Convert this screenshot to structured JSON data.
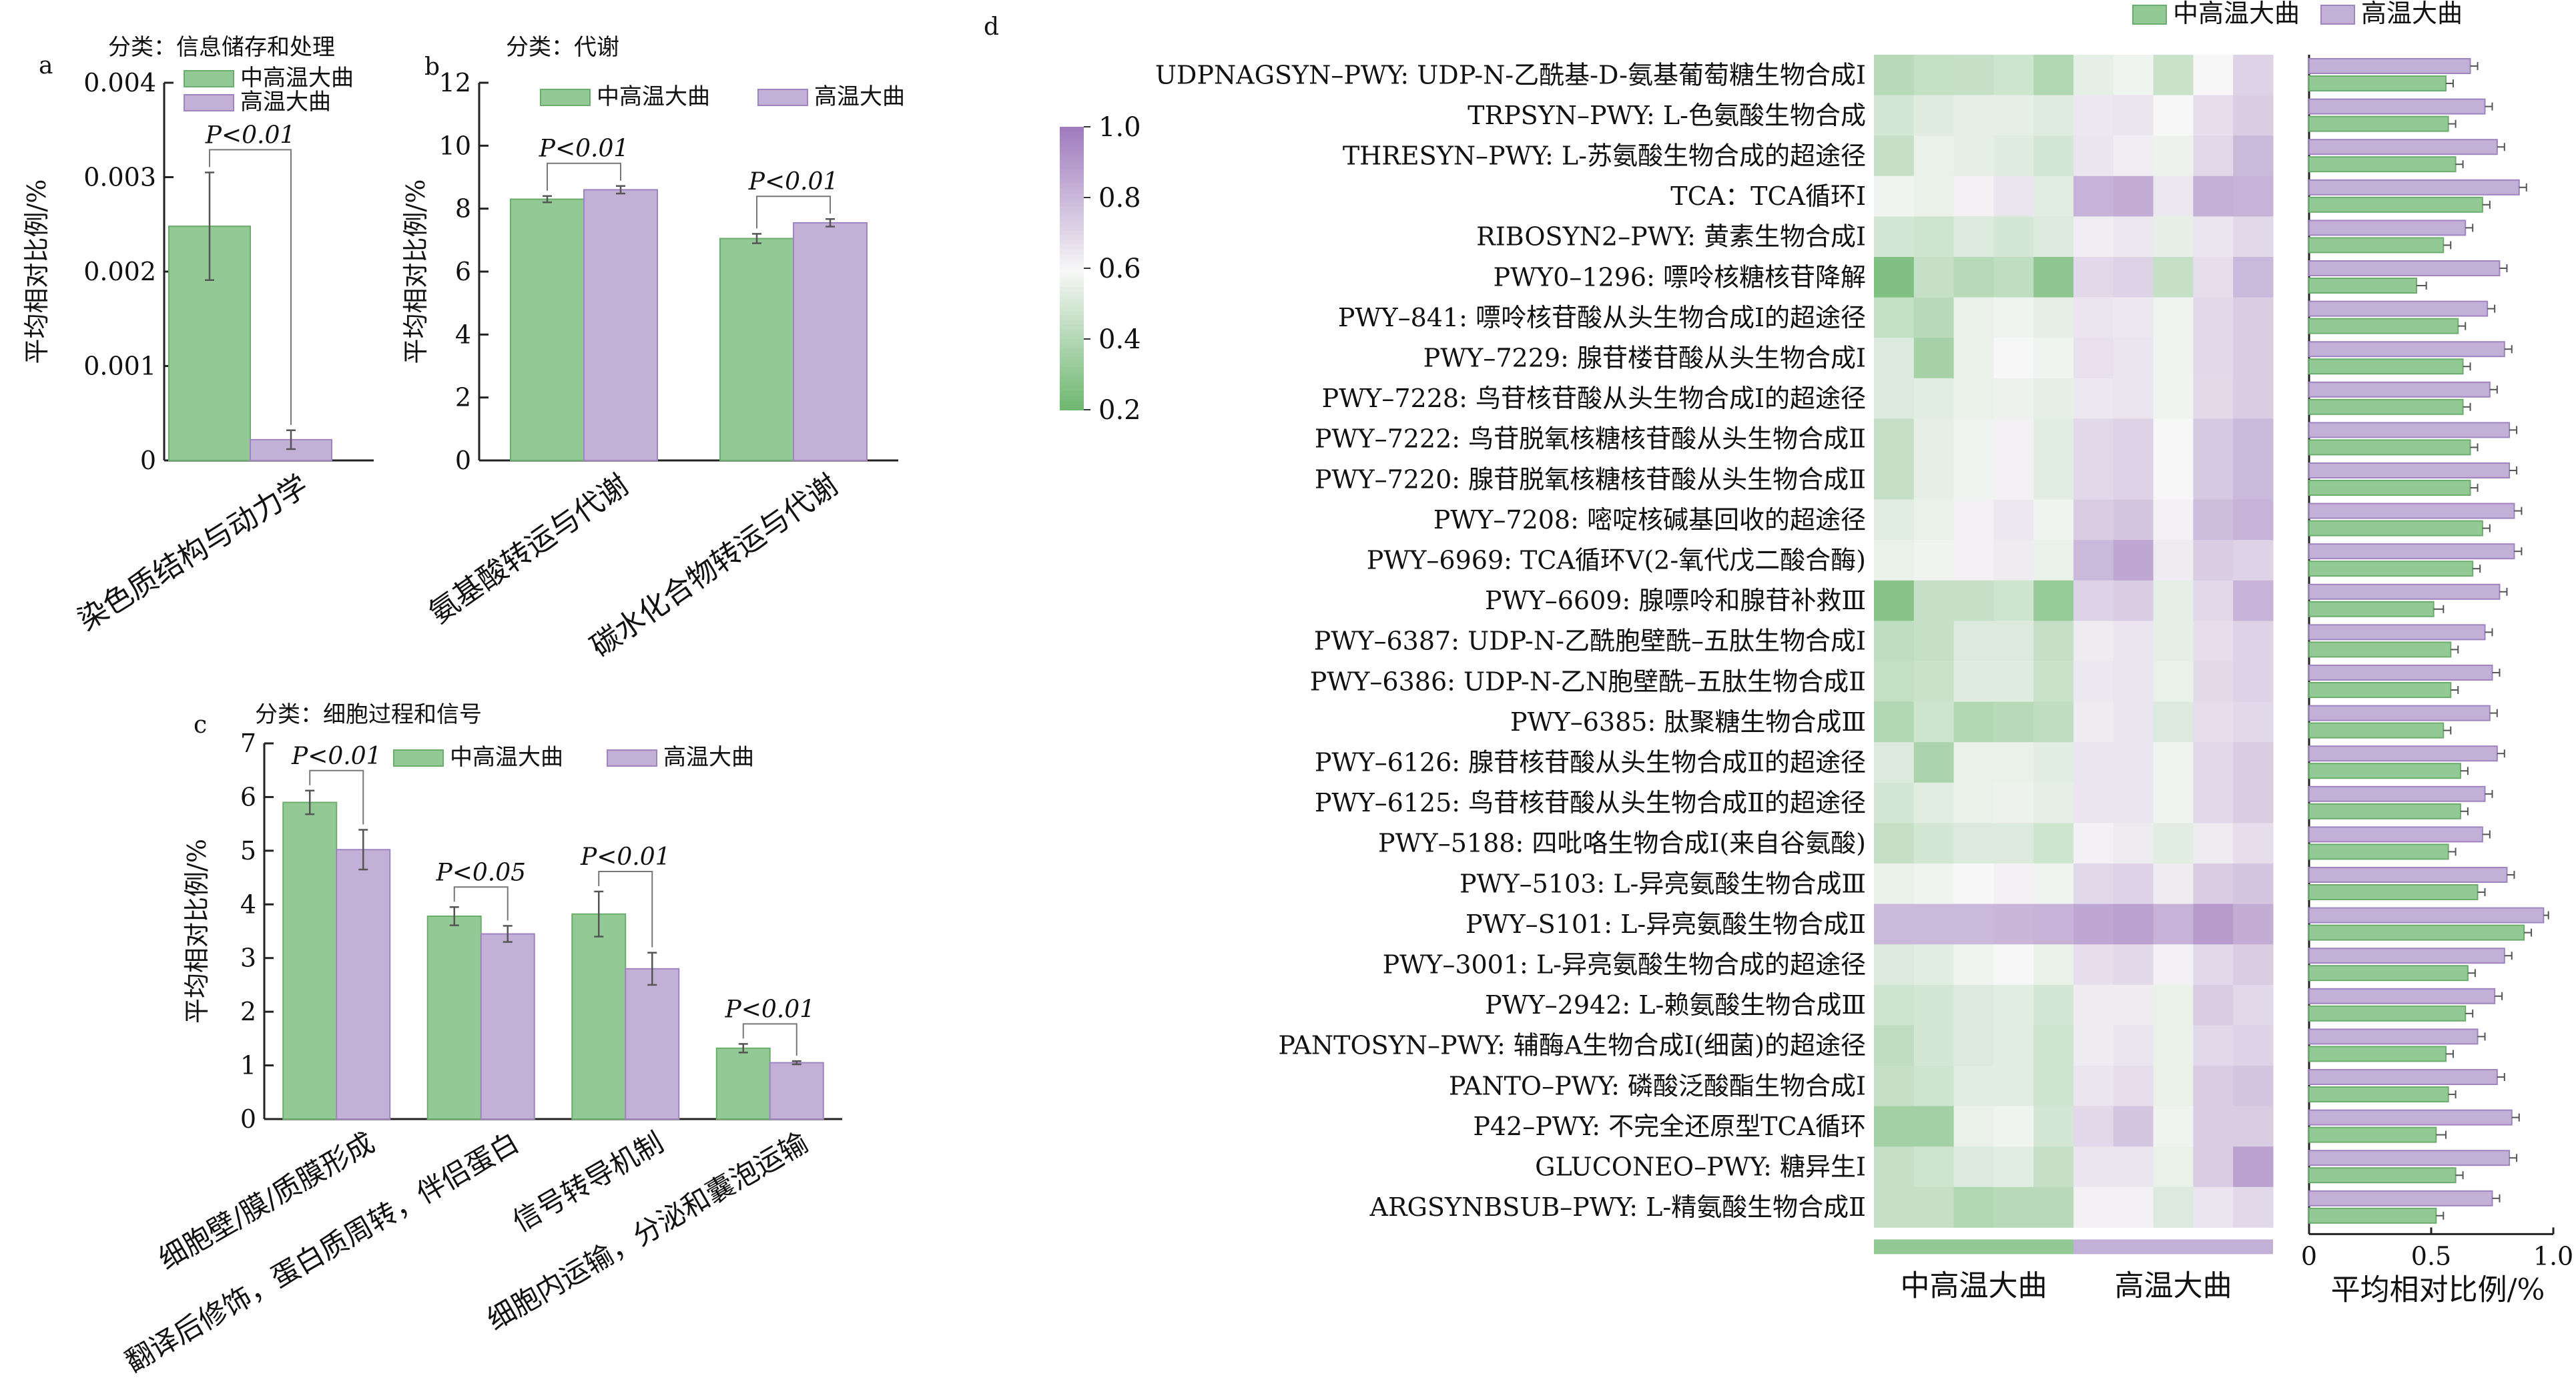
{
  "colors": {
    "green": "#93c994",
    "green_dark": "#6aad6c",
    "purple": "#c3b0d6",
    "purple_dark": "#9f84c0",
    "axis": "#222222"
  },
  "groups": [
    "中高温大曲",
    "高温大曲"
  ],
  "chart_data": [
    {
      "panel": "a",
      "type": "bar",
      "title": "分类：信息储存和处理",
      "ylabel": "平均相对比例/%",
      "ylim": [
        0,
        0.004
      ],
      "yticks": [
        {
          "v": 0,
          "label": "0"
        },
        {
          "v": 0.001,
          "label": "0.001"
        },
        {
          "v": 0.002,
          "label": "0.002"
        },
        {
          "v": 0.003,
          "label": "0.003"
        },
        {
          "v": 0.004,
          "label": "0.004"
        }
      ],
      "categories": [
        "染色质结构与动力学"
      ],
      "series": [
        {
          "name": "中高温大曲",
          "values": [
            0.00248
          ],
          "errors": [
            0.00057
          ]
        },
        {
          "name": "高温大曲",
          "values": [
            0.00022
          ],
          "errors": [
            0.0001
          ]
        }
      ],
      "annotations": [
        {
          "category": 0,
          "text": "P<0.01"
        }
      ],
      "legend": "top-right"
    },
    {
      "panel": "b",
      "type": "bar",
      "title": "分类：代谢",
      "ylabel": "平均相对比例/%",
      "ylim": [
        0,
        12
      ],
      "yticks": [
        {
          "v": 0,
          "label": "0"
        },
        {
          "v": 2,
          "label": "2"
        },
        {
          "v": 4,
          "label": "4"
        },
        {
          "v": 6,
          "label": "6"
        },
        {
          "v": 8,
          "label": "8"
        },
        {
          "v": 10,
          "label": "10"
        },
        {
          "v": 12,
          "label": "12"
        }
      ],
      "categories": [
        "氨基酸转运与代谢",
        "碳水化合物转运与代谢"
      ],
      "series": [
        {
          "name": "中高温大曲",
          "values": [
            8.3,
            7.05
          ],
          "errors": [
            0.1,
            0.15
          ]
        },
        {
          "name": "高温大曲",
          "values": [
            8.6,
            7.55
          ],
          "errors": [
            0.12,
            0.12
          ]
        }
      ],
      "annotations": [
        {
          "category": 0,
          "text": "P<0.01"
        },
        {
          "category": 1,
          "text": "P<0.01"
        }
      ],
      "legend": "top"
    },
    {
      "panel": "c",
      "type": "bar",
      "title": "分类：细胞过程和信号",
      "ylabel": "平均相对比例/%",
      "ylim": [
        0,
        7
      ],
      "yticks": [
        {
          "v": 0,
          "label": "0"
        },
        {
          "v": 1,
          "label": "1"
        },
        {
          "v": 2,
          "label": "2"
        },
        {
          "v": 3,
          "label": "3"
        },
        {
          "v": 4,
          "label": "4"
        },
        {
          "v": 5,
          "label": "5"
        },
        {
          "v": 6,
          "label": "6"
        },
        {
          "v": 7,
          "label": "7"
        }
      ],
      "categories": [
        "细胞壁/膜/质膜形成",
        "翻译后修饰，蛋白质周转，伴侣蛋白",
        "信号转导机制",
        "细胞内运输，分泌和囊泡运输"
      ],
      "series": [
        {
          "name": "中高温大曲",
          "values": [
            5.9,
            3.78,
            3.82,
            1.32
          ],
          "errors": [
            0.22,
            0.17,
            0.42,
            0.08
          ]
        },
        {
          "name": "高温大曲",
          "values": [
            5.02,
            3.45,
            2.8,
            1.05
          ],
          "errors": [
            0.37,
            0.15,
            0.3,
            0.03
          ]
        }
      ],
      "annotations": [
        {
          "category": 0,
          "text": "P<0.01"
        },
        {
          "category": 1,
          "text": "P<0.05"
        },
        {
          "category": 2,
          "text": "P<0.01"
        },
        {
          "category": 3,
          "text": "P<0.01"
        }
      ],
      "legend": "top"
    },
    {
      "panel": "d",
      "type": "heatmap",
      "colorbar": {
        "min": 0.2,
        "max": 1.0,
        "ticks": [
          "1.0",
          "0.8",
          "0.6",
          "0.4",
          "0.2"
        ]
      },
      "column_groups": [
        "中高温大曲",
        "高温大曲"
      ],
      "rows": [
        {
          "label": "UDPNAGSYN–PWY: UDP-N-乙酰基-D-氨基葡萄糖生物合成Ⅰ",
          "cells": [
            0.42,
            0.45,
            0.46,
            0.48,
            0.4,
            0.55,
            0.58,
            0.47,
            0.6,
            0.72
          ]
        },
        {
          "label": "TRPSYN–PWY: L-色氨酸生物合成",
          "cells": [
            0.5,
            0.53,
            0.55,
            0.55,
            0.53,
            0.65,
            0.66,
            0.6,
            0.68,
            0.74
          ]
        },
        {
          "label": "THRESYN–PWY: L-苏氨酸生物合成的超途径",
          "cells": [
            0.46,
            0.56,
            0.55,
            0.53,
            0.5,
            0.66,
            0.63,
            0.57,
            0.7,
            0.8
          ]
        },
        {
          "label": "TCA：TCA循环Ⅰ",
          "cells": [
            0.58,
            0.56,
            0.62,
            0.66,
            0.54,
            0.82,
            0.84,
            0.65,
            0.83,
            0.82
          ]
        },
        {
          "label": "RIBOSYN2–PWY: 黄素生物合成Ⅰ",
          "cells": [
            0.5,
            0.48,
            0.52,
            0.5,
            0.52,
            0.63,
            0.65,
            0.55,
            0.66,
            0.7
          ]
        },
        {
          "label": "PWY0–1296: 嘌呤核糖核苷降解",
          "cells": [
            0.26,
            0.46,
            0.42,
            0.44,
            0.3,
            0.7,
            0.72,
            0.46,
            0.68,
            0.8
          ]
        },
        {
          "label": "PWY–841: 嘌呤核苷酸从头生物合成Ⅰ的超途径",
          "cells": [
            0.45,
            0.42,
            0.56,
            0.58,
            0.55,
            0.66,
            0.65,
            0.58,
            0.7,
            0.74
          ]
        },
        {
          "label": "PWY–7229: 腺苷楼苷酸从头生物合成Ⅰ",
          "cells": [
            0.52,
            0.37,
            0.56,
            0.6,
            0.58,
            0.67,
            0.66,
            0.58,
            0.7,
            0.74
          ]
        },
        {
          "label": "PWY–7228: 鸟苷核苷酸从头生物合成Ⅰ的超途径",
          "cells": [
            0.52,
            0.54,
            0.56,
            0.57,
            0.55,
            0.65,
            0.66,
            0.58,
            0.69,
            0.74
          ]
        },
        {
          "label": "PWY–7222: 鸟苷脱氧核糖核苷酸从头生物合成Ⅱ",
          "cells": [
            0.46,
            0.55,
            0.58,
            0.62,
            0.54,
            0.7,
            0.72,
            0.6,
            0.75,
            0.8
          ]
        },
        {
          "label": "PWY–7220: 腺苷脱氧核糖核苷酸从头生物合成Ⅱ",
          "cells": [
            0.46,
            0.55,
            0.58,
            0.62,
            0.54,
            0.7,
            0.72,
            0.6,
            0.75,
            0.8
          ]
        },
        {
          "label": "PWY–7208: 嘧啶核碱基回收的超途径",
          "cells": [
            0.54,
            0.56,
            0.62,
            0.65,
            0.58,
            0.74,
            0.76,
            0.62,
            0.79,
            0.82
          ]
        },
        {
          "label": "PWY–6969: TCA循环Ⅴ(2-氧代戊二酸合酶)",
          "cells": [
            0.56,
            0.58,
            0.62,
            0.64,
            0.56,
            0.8,
            0.86,
            0.64,
            0.74,
            0.72
          ]
        },
        {
          "label": "PWY–6609: 腺嘌呤和腺苷补救Ⅲ",
          "cells": [
            0.28,
            0.46,
            0.46,
            0.48,
            0.32,
            0.72,
            0.74,
            0.55,
            0.7,
            0.82
          ]
        },
        {
          "label": "PWY–6387: UDP-N-乙酰胞壁酰–五肽生物合成Ⅰ",
          "cells": [
            0.44,
            0.46,
            0.52,
            0.52,
            0.46,
            0.64,
            0.66,
            0.55,
            0.68,
            0.72
          ]
        },
        {
          "label": "PWY–6386: UDP-N-乙N胞壁酰–五肽生物合成Ⅱ",
          "cells": [
            0.45,
            0.47,
            0.53,
            0.53,
            0.47,
            0.65,
            0.66,
            0.56,
            0.69,
            0.72
          ]
        },
        {
          "label": "PWY–6385: 肽聚糖生物合成Ⅲ",
          "cells": [
            0.4,
            0.48,
            0.4,
            0.42,
            0.44,
            0.64,
            0.66,
            0.52,
            0.68,
            0.7
          ]
        },
        {
          "label": "PWY–6126: 腺苷核苷酸从头生物合成Ⅱ的超途径",
          "cells": [
            0.52,
            0.38,
            0.56,
            0.56,
            0.54,
            0.66,
            0.66,
            0.58,
            0.7,
            0.74
          ]
        },
        {
          "label": "PWY–6125: 鸟苷核苷酸从头生物合成Ⅱ的超途径",
          "cells": [
            0.5,
            0.54,
            0.56,
            0.57,
            0.55,
            0.66,
            0.66,
            0.58,
            0.7,
            0.74
          ]
        },
        {
          "label": "PWY–5188: 四吡咯生物合成Ⅰ(来自谷氨酸)",
          "cells": [
            0.46,
            0.5,
            0.52,
            0.52,
            0.48,
            0.62,
            0.64,
            0.54,
            0.64,
            0.68
          ]
        },
        {
          "label": "PWY–5103: L-异亮氨酸生物合成Ⅲ",
          "cells": [
            0.56,
            0.58,
            0.6,
            0.62,
            0.58,
            0.7,
            0.72,
            0.64,
            0.74,
            0.76
          ]
        },
        {
          "label": "PWY–S101: L-异亮氨酸生物合成Ⅱ",
          "cells": [
            0.8,
            0.8,
            0.8,
            0.81,
            0.82,
            0.86,
            0.88,
            0.82,
            0.9,
            0.84
          ]
        },
        {
          "label": "PWY–3001: L-异亮氨酸生物合成的超途径",
          "cells": [
            0.52,
            0.54,
            0.58,
            0.6,
            0.56,
            0.68,
            0.7,
            0.62,
            0.7,
            0.74
          ]
        },
        {
          "label": "PWY–2942: L-赖氨酸生物合成Ⅲ",
          "cells": [
            0.48,
            0.5,
            0.52,
            0.54,
            0.5,
            0.64,
            0.64,
            0.56,
            0.74,
            0.7
          ]
        },
        {
          "label": "PANTOSYN–PWY: 辅酶A生物合成Ⅰ(细菌)的超途径",
          "cells": [
            0.44,
            0.5,
            0.52,
            0.54,
            0.48,
            0.64,
            0.66,
            0.56,
            0.7,
            0.72
          ]
        },
        {
          "label": "PANTO–PWY: 磷酸泛酸酯生物合成Ⅰ",
          "cells": [
            0.46,
            0.48,
            0.54,
            0.54,
            0.48,
            0.66,
            0.68,
            0.56,
            0.74,
            0.76
          ]
        },
        {
          "label": "P42–PWY: 不完全还原型TCA循环",
          "cells": [
            0.36,
            0.36,
            0.56,
            0.58,
            0.5,
            0.7,
            0.76,
            0.58,
            0.74,
            0.74
          ]
        },
        {
          "label": "GLUCONEO–PWY: 糖异生Ⅰ",
          "cells": [
            0.46,
            0.48,
            0.52,
            0.54,
            0.46,
            0.66,
            0.66,
            0.56,
            0.74,
            0.88
          ]
        },
        {
          "label": "ARGSYNBSUB–PWY: L-精氨酸生物合成Ⅱ",
          "cells": [
            0.46,
            0.46,
            0.4,
            0.42,
            0.42,
            0.62,
            0.62,
            0.52,
            0.66,
            0.7
          ]
        }
      ],
      "bars": {
        "xlabel": "平均相对比例/%",
        "xlim": [
          0,
          1.0
        ],
        "xticks": [
          {
            "v": 0,
            "label": "0"
          },
          {
            "v": 0.5,
            "label": "0.5"
          },
          {
            "v": 1.0,
            "label": "1.0"
          }
        ],
        "high": [
          0.66,
          0.72,
          0.77,
          0.86,
          0.64,
          0.78,
          0.73,
          0.8,
          0.74,
          0.82,
          0.82,
          0.84,
          0.84,
          0.78,
          0.72,
          0.75,
          0.74,
          0.77,
          0.72,
          0.71,
          0.81,
          0.96,
          0.8,
          0.76,
          0.69,
          0.77,
          0.83,
          0.82,
          0.75
        ],
        "high_err": [
          0.03,
          0.03,
          0.03,
          0.03,
          0.03,
          0.03,
          0.03,
          0.03,
          0.03,
          0.03,
          0.03,
          0.03,
          0.03,
          0.03,
          0.03,
          0.03,
          0.03,
          0.03,
          0.03,
          0.03,
          0.03,
          0.02,
          0.03,
          0.03,
          0.03,
          0.03,
          0.03,
          0.03,
          0.03
        ],
        "mid": [
          0.56,
          0.57,
          0.6,
          0.71,
          0.55,
          0.44,
          0.61,
          0.63,
          0.63,
          0.66,
          0.66,
          0.71,
          0.67,
          0.51,
          0.58,
          0.58,
          0.55,
          0.62,
          0.62,
          0.57,
          0.69,
          0.88,
          0.65,
          0.64,
          0.56,
          0.57,
          0.52,
          0.6,
          0.52
        ],
        "mid_err": [
          0.03,
          0.03,
          0.03,
          0.03,
          0.03,
          0.04,
          0.03,
          0.03,
          0.03,
          0.03,
          0.03,
          0.03,
          0.03,
          0.04,
          0.03,
          0.03,
          0.03,
          0.03,
          0.03,
          0.03,
          0.03,
          0.03,
          0.03,
          0.03,
          0.03,
          0.03,
          0.04,
          0.03,
          0.03
        ]
      }
    }
  ]
}
